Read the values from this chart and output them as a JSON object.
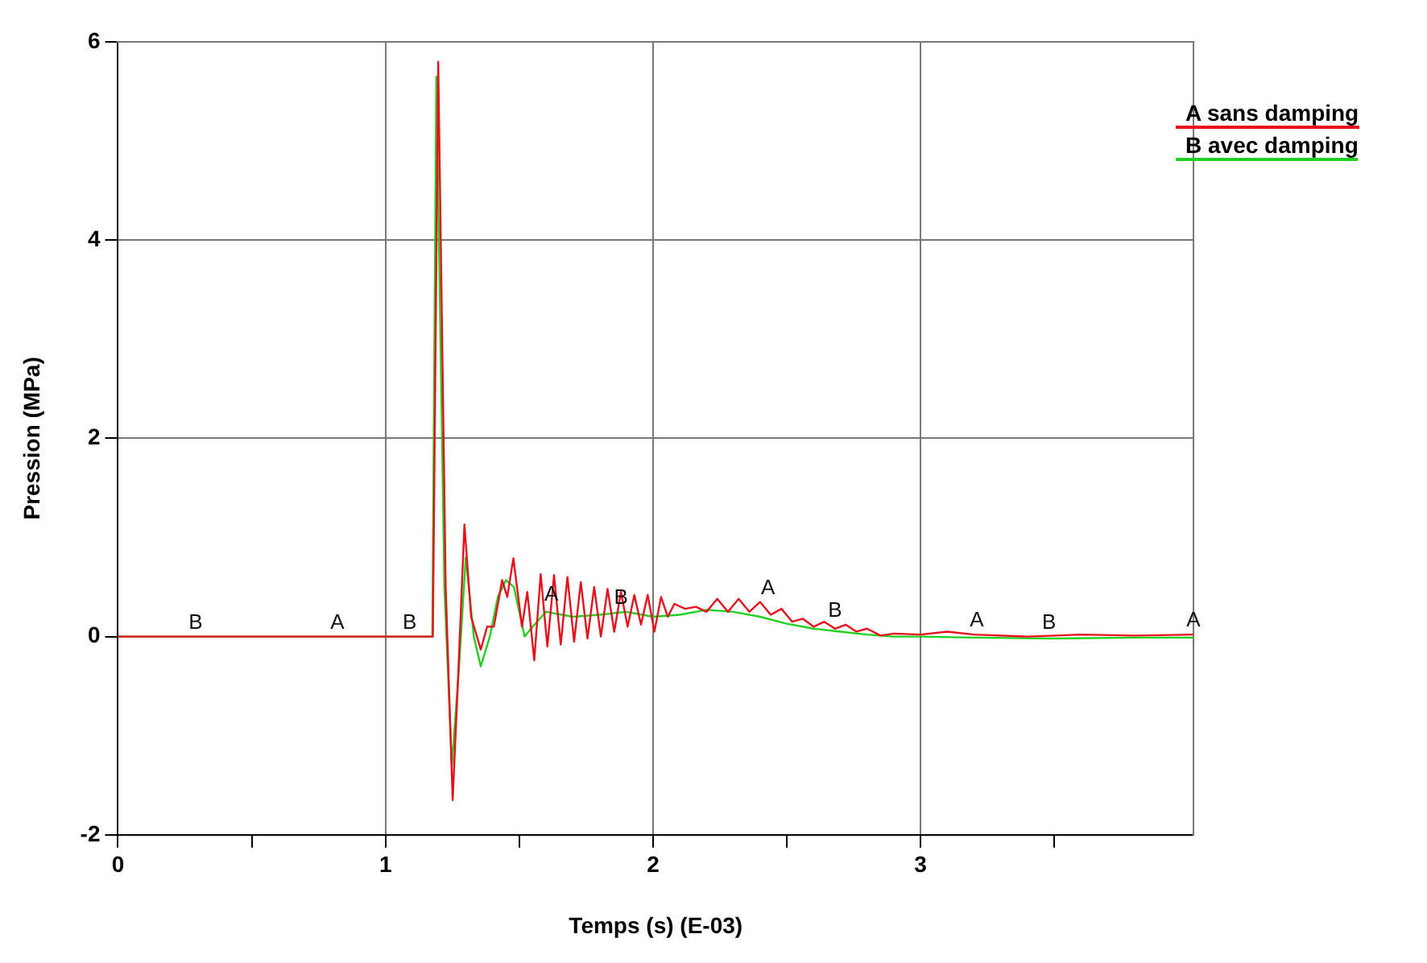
{
  "chart_data": {
    "type": "line",
    "xlabel": "Temps (s) (E-03)",
    "ylabel": "Pression (MPa)",
    "xlim": [
      0,
      4.02
    ],
    "xticks": [
      0,
      {
        "value": 0.5,
        "label": null
      },
      1,
      {
        "value": 1.5,
        "label": null
      },
      2,
      {
        "value": 2.5,
        "label": null
      },
      3,
      {
        "value": 3.5,
        "label": null
      }
    ],
    "ylim": [
      -2,
      6
    ],
    "yticks": [
      -2,
      0,
      2,
      4,
      6
    ],
    "grid": true,
    "legend": "top right",
    "marker": "none",
    "line_style": "solid",
    "series": [
      {
        "name": "A sans damping",
        "color": "#e8101c",
        "x": [
          0,
          1.177,
          1.197,
          1.225,
          1.251,
          1.27,
          1.295,
          1.32,
          1.356,
          1.38,
          1.405,
          1.436,
          1.455,
          1.478,
          1.51,
          1.53,
          1.556,
          1.58,
          1.605,
          1.63,
          1.655,
          1.68,
          1.705,
          1.73,
          1.755,
          1.78,
          1.805,
          1.83,
          1.855,
          1.88,
          1.905,
          1.93,
          1.955,
          1.98,
          2.005,
          2.03,
          2.055,
          2.08,
          2.12,
          2.16,
          2.2,
          2.24,
          2.28,
          2.32,
          2.36,
          2.4,
          2.44,
          2.48,
          2.52,
          2.56,
          2.6,
          2.64,
          2.68,
          2.72,
          2.76,
          2.8,
          2.85,
          2.9,
          3,
          3.1,
          3.2,
          3.4,
          3.6,
          3.8,
          4.02
        ],
        "values": [
          0,
          0,
          5.8,
          0.5,
          -1.65,
          -0.5,
          1.13,
          0.2,
          -0.13,
          0.1,
          0.1,
          0.57,
          0.4,
          0.79,
          0.1,
          0.45,
          -0.24,
          0.63,
          -0.1,
          0.62,
          -0.08,
          0.6,
          -0.05,
          0.55,
          -0.02,
          0.5,
          0,
          0.48,
          0.05,
          0.45,
          0.1,
          0.42,
          0.12,
          0.42,
          0.05,
          0.4,
          0.2,
          0.33,
          0.28,
          0.3,
          0.25,
          0.38,
          0.25,
          0.38,
          0.25,
          0.35,
          0.22,
          0.28,
          0.15,
          0.18,
          0.1,
          0.15,
          0.08,
          0.12,
          0.05,
          0.08,
          0.01,
          0.03,
          0.02,
          0.05,
          0.02,
          0,
          0.02,
          0.01,
          0.02
        ]
      },
      {
        "name": "B avec damping",
        "color": "#22d022",
        "x": [
          0,
          1.175,
          1.19,
          1.22,
          1.248,
          1.275,
          1.3,
          1.33,
          1.356,
          1.39,
          1.42,
          1.45,
          1.48,
          1.52,
          1.55,
          1.6,
          1.7,
          1.8,
          1.9,
          2,
          2.1,
          2.2,
          2.3,
          2.4,
          2.5,
          2.6,
          2.7,
          2.8,
          2.9,
          3,
          3.2,
          3.5,
          3.8,
          4.02
        ],
        "values": [
          0,
          0,
          5.65,
          0.5,
          -1.3,
          -0.3,
          0.8,
          0,
          -0.3,
          0,
          0.4,
          0.57,
          0.5,
          0,
          0.1,
          0.25,
          0.2,
          0.22,
          0.25,
          0.2,
          0.22,
          0.27,
          0.25,
          0.2,
          0.13,
          0.08,
          0.05,
          0.02,
          0,
          0,
          -0.01,
          -0.02,
          -0.01,
          -0.01
        ]
      }
    ],
    "annotations": [
      {
        "text": "B",
        "x": 0.29,
        "y": 0
      },
      {
        "text": "A",
        "x": 0.82,
        "y": 0
      },
      {
        "text": "B",
        "x": 1.09,
        "y": 0
      },
      {
        "text": "A",
        "x": 1.62,
        "y": 0.28
      },
      {
        "text": "B",
        "x": 1.88,
        "y": 0.25
      },
      {
        "text": "A",
        "x": 2.43,
        "y": 0.35
      },
      {
        "text": "B",
        "x": 2.68,
        "y": 0.12
      },
      {
        "text": "A",
        "x": 3.21,
        "y": 0.02
      },
      {
        "text": "B",
        "x": 3.48,
        "y": 0
      },
      {
        "text": "A",
        "x": 4.02,
        "y": 0.02
      }
    ]
  }
}
